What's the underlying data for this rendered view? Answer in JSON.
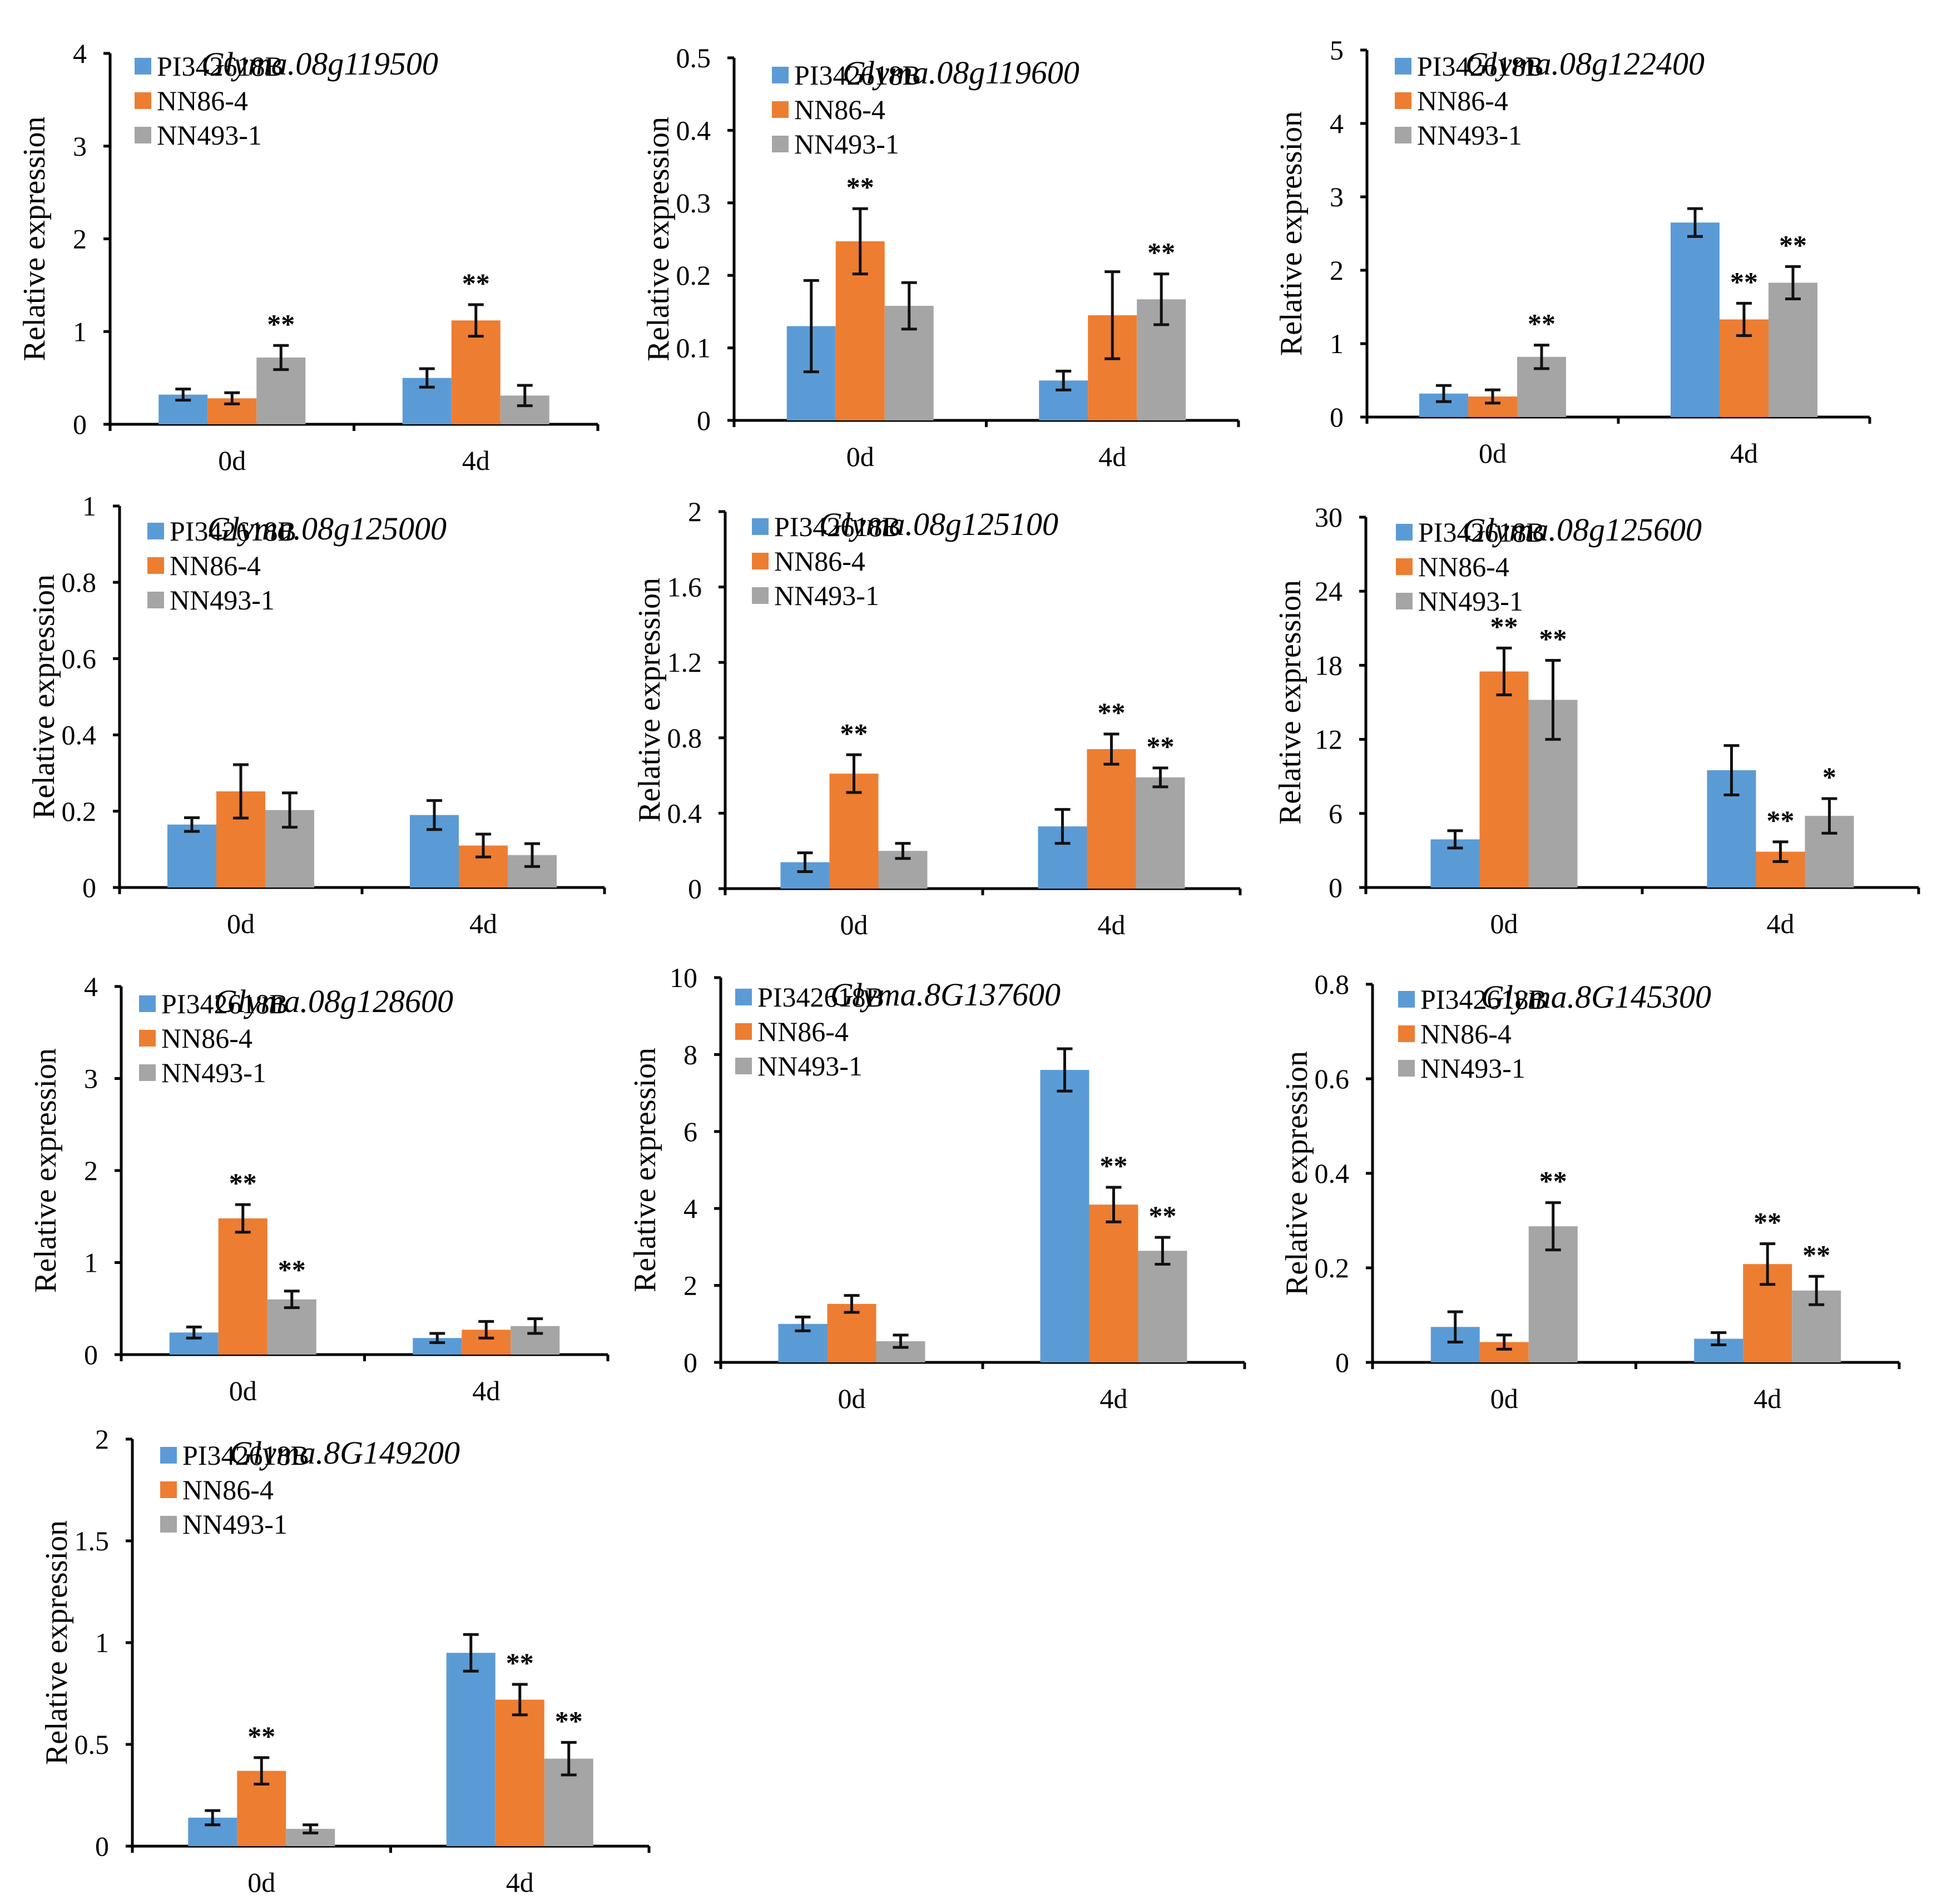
{
  "colors": {
    "PI342618B": "#5b9bd5",
    "NN86-4": "#ed7d31",
    "NN493-1": "#a5a5a5"
  },
  "series_names": [
    "PI342618B",
    "NN86-4",
    "NN493-1"
  ],
  "categories": [
    "0d",
    "4d"
  ],
  "ylabel": "Relative expression",
  "chart_data": [
    {
      "type": "bar",
      "title": "Glyma.08g119500",
      "ylabel": "Relative expression",
      "categories": [
        "0d",
        "4d"
      ],
      "ylim": [
        0,
        4
      ],
      "yticks": [
        "0",
        "1",
        "2",
        "3",
        "4"
      ],
      "series": [
        {
          "name": "PI342618B",
          "values": [
            0.32,
            0.5
          ],
          "errors": [
            0.06,
            0.1
          ]
        },
        {
          "name": "NN86-4",
          "values": [
            0.28,
            1.12
          ],
          "errors": [
            0.06,
            0.17
          ]
        },
        {
          "name": "NN493-1",
          "values": [
            0.72,
            0.31
          ],
          "errors": [
            0.13,
            0.11
          ]
        }
      ],
      "significance": [
        [
          "",
          ""
        ],
        [
          "",
          "**"
        ],
        [
          "**",
          ""
        ]
      ]
    },
    {
      "type": "bar",
      "title": "Glyma.08g119600",
      "ylabel": "Relative expression",
      "categories": [
        "0d",
        "4d"
      ],
      "ylim": [
        0,
        0.5
      ],
      "yticks": [
        "0",
        "0.1",
        "0.2",
        "0.3",
        "0.4",
        "0.5"
      ],
      "series": [
        {
          "name": "PI342618B",
          "values": [
            0.13,
            0.055
          ],
          "errors": [
            0.063,
            0.013
          ]
        },
        {
          "name": "NN86-4",
          "values": [
            0.247,
            0.145
          ],
          "errors": [
            0.045,
            0.06
          ]
        },
        {
          "name": "NN493-1",
          "values": [
            0.158,
            0.167
          ],
          "errors": [
            0.032,
            0.035
          ]
        }
      ],
      "significance": [
        [
          "",
          ""
        ],
        [
          "**",
          ""
        ],
        [
          "",
          "**"
        ]
      ]
    },
    {
      "type": "bar",
      "title": "Glyma.08g122400",
      "ylabel": "Relative expression",
      "categories": [
        "0d",
        "4d"
      ],
      "ylim": [
        0,
        5
      ],
      "yticks": [
        "0",
        "1",
        "2",
        "3",
        "4",
        "5"
      ],
      "series": [
        {
          "name": "PI342618B",
          "values": [
            0.32,
            2.65
          ],
          "errors": [
            0.11,
            0.19
          ]
        },
        {
          "name": "NN86-4",
          "values": [
            0.28,
            1.33
          ],
          "errors": [
            0.09,
            0.22
          ]
        },
        {
          "name": "NN493-1",
          "values": [
            0.82,
            1.83
          ],
          "errors": [
            0.16,
            0.22
          ]
        }
      ],
      "significance": [
        [
          "",
          ""
        ],
        [
          "",
          "**"
        ],
        [
          "**",
          "**"
        ]
      ]
    },
    {
      "type": "bar",
      "title": "Glyma.08g125000",
      "ylabel": "Relative expression",
      "categories": [
        "0d",
        "4d"
      ],
      "ylim": [
        0,
        1
      ],
      "yticks": [
        "0",
        "0.2",
        "0.4",
        "0.6",
        "0.8",
        "1"
      ],
      "series": [
        {
          "name": "PI342618B",
          "values": [
            0.165,
            0.19
          ],
          "errors": [
            0.018,
            0.038
          ]
        },
        {
          "name": "NN86-4",
          "values": [
            0.252,
            0.11
          ],
          "errors": [
            0.07,
            0.03
          ]
        },
        {
          "name": "NN493-1",
          "values": [
            0.203,
            0.085
          ],
          "errors": [
            0.045,
            0.03
          ]
        }
      ],
      "significance": [
        [
          "",
          ""
        ],
        [
          "",
          ""
        ],
        [
          "",
          ""
        ]
      ]
    },
    {
      "type": "bar",
      "title": "Glyma.08g125100",
      "ylabel": "Relative expression",
      "categories": [
        "0d",
        "4d"
      ],
      "ylim": [
        0,
        2
      ],
      "yticks": [
        "0",
        "0.4",
        "0.8",
        "1.2",
        "1.6",
        "2"
      ],
      "series": [
        {
          "name": "PI342618B",
          "values": [
            0.14,
            0.33
          ],
          "errors": [
            0.05,
            0.09
          ]
        },
        {
          "name": "NN86-4",
          "values": [
            0.61,
            0.74
          ],
          "errors": [
            0.1,
            0.08
          ]
        },
        {
          "name": "NN493-1",
          "values": [
            0.2,
            0.59
          ],
          "errors": [
            0.04,
            0.05
          ]
        }
      ],
      "significance": [
        [
          "",
          ""
        ],
        [
          "**",
          "**"
        ],
        [
          "",
          "**"
        ]
      ]
    },
    {
      "type": "bar",
      "title": "Glyma.08g125600",
      "ylabel": "Relative expression",
      "categories": [
        "0d",
        "4d"
      ],
      "ylim": [
        0,
        30
      ],
      "yticks": [
        "0",
        "6",
        "12",
        "18",
        "24",
        "30"
      ],
      "series": [
        {
          "name": "PI342618B",
          "values": [
            3.9,
            9.5
          ],
          "errors": [
            0.7,
            2.0
          ]
        },
        {
          "name": "NN86-4",
          "values": [
            17.5,
            2.9
          ],
          "errors": [
            1.9,
            0.8
          ]
        },
        {
          "name": "NN493-1",
          "values": [
            15.2,
            5.8
          ],
          "errors": [
            3.2,
            1.4
          ]
        }
      ],
      "significance": [
        [
          "",
          ""
        ],
        [
          "**",
          "**"
        ],
        [
          "**",
          "*"
        ]
      ]
    },
    {
      "type": "bar",
      "title": "Glyma.08g128600",
      "ylabel": "Relative expression",
      "categories": [
        "0d",
        "4d"
      ],
      "ylim": [
        0,
        4
      ],
      "yticks": [
        "0",
        "1",
        "2",
        "3",
        "4"
      ],
      "series": [
        {
          "name": "PI342618B",
          "values": [
            0.24,
            0.18
          ],
          "errors": [
            0.06,
            0.05
          ]
        },
        {
          "name": "NN86-4",
          "values": [
            1.48,
            0.27
          ],
          "errors": [
            0.15,
            0.09
          ]
        },
        {
          "name": "NN493-1",
          "values": [
            0.6,
            0.31
          ],
          "errors": [
            0.09,
            0.08
          ]
        }
      ],
      "significance": [
        [
          "",
          ""
        ],
        [
          "**",
          ""
        ],
        [
          "**",
          ""
        ]
      ]
    },
    {
      "type": "bar",
      "title": "Glyma.8G137600",
      "ylabel": "Relative expression",
      "categories": [
        "0d",
        "4d"
      ],
      "ylim": [
        0,
        10
      ],
      "yticks": [
        "0",
        "2",
        "4",
        "6",
        "8",
        "10"
      ],
      "series": [
        {
          "name": "PI342618B",
          "values": [
            1.0,
            7.6
          ],
          "errors": [
            0.18,
            0.55
          ]
        },
        {
          "name": "NN86-4",
          "values": [
            1.52,
            4.1
          ],
          "errors": [
            0.22,
            0.45
          ]
        },
        {
          "name": "NN493-1",
          "values": [
            0.55,
            2.9
          ],
          "errors": [
            0.16,
            0.35
          ]
        }
      ],
      "significance": [
        [
          "",
          ""
        ],
        [
          "",
          "**"
        ],
        [
          "",
          "**"
        ]
      ]
    },
    {
      "type": "bar",
      "title": "Glyma.8G145300",
      "ylabel": "Relative expression",
      "categories": [
        "0d",
        "4d"
      ],
      "ylim": [
        0,
        0.8
      ],
      "yticks": [
        "0",
        "0.2",
        "0.4",
        "0.6",
        "0.8"
      ],
      "series": [
        {
          "name": "PI342618B",
          "values": [
            0.075,
            0.05
          ],
          "errors": [
            0.032,
            0.013
          ]
        },
        {
          "name": "NN86-4",
          "values": [
            0.043,
            0.208
          ],
          "errors": [
            0.015,
            0.043
          ]
        },
        {
          "name": "NN493-1",
          "values": [
            0.288,
            0.152
          ],
          "errors": [
            0.05,
            0.03
          ]
        }
      ],
      "significance": [
        [
          "",
          ""
        ],
        [
          "",
          "**"
        ],
        [
          "**",
          "**"
        ]
      ]
    },
    {
      "type": "bar",
      "title": "Glyma.8G149200",
      "ylabel": "Relative expression",
      "categories": [
        "0d",
        "4d"
      ],
      "ylim": [
        0,
        2
      ],
      "yticks": [
        "0",
        "0.5",
        "1",
        "1.5",
        "2"
      ],
      "series": [
        {
          "name": "PI342618B",
          "values": [
            0.14,
            0.95
          ],
          "errors": [
            0.035,
            0.09
          ]
        },
        {
          "name": "NN86-4",
          "values": [
            0.37,
            0.72
          ],
          "errors": [
            0.065,
            0.075
          ]
        },
        {
          "name": "NN493-1",
          "values": [
            0.085,
            0.43
          ],
          "errors": [
            0.02,
            0.08
          ]
        }
      ],
      "significance": [
        [
          "",
          ""
        ],
        [
          "**",
          "**"
        ],
        [
          "",
          "**"
        ]
      ]
    }
  ]
}
